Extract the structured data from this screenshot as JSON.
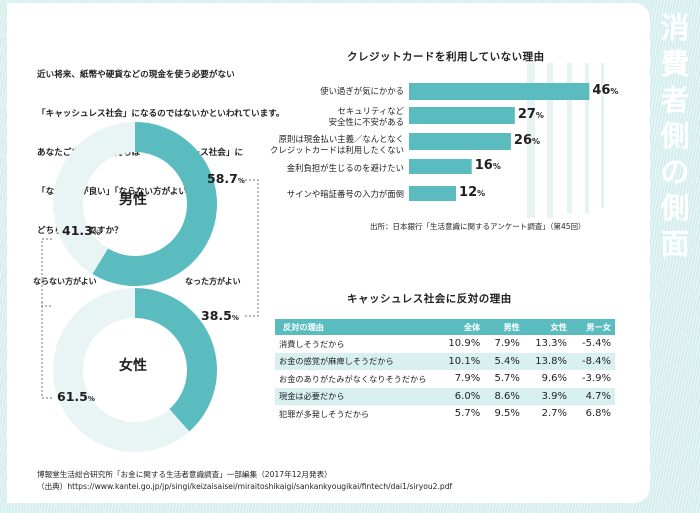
{
  "side_title": [
    "消",
    "費",
    "者",
    "側",
    "の",
    "側",
    "面"
  ],
  "question": [
    "近い将来、紙幣や硬貨などの現金を使う必要がない",
    "「キャッシュレス社会」になるのではないかといわれています。",
    "あなたご自身のお気持ちは「キャッシュレス社会」に",
    "「なった方が良い」「ならない方がよい」の",
    "どちらに近いですか？"
  ],
  "legend": {
    "positive": "なった方がよい",
    "negative": "ならない方がよい"
  },
  "pct_sign": "%",
  "colors": {
    "accent": "#5bbcc0",
    "light": "#e9f5f5",
    "bar": "#5bbcc0"
  },
  "chart_data": [
    {
      "type": "pie",
      "title": "男性",
      "labels": [
        "なった方がよい",
        "ならない方がよい"
      ],
      "values": [
        58.7,
        41.3
      ]
    },
    {
      "type": "pie",
      "title": "女性",
      "labels": [
        "なった方がよい",
        "ならない方がよい"
      ],
      "values": [
        38.5,
        61.5
      ]
    },
    {
      "type": "bar",
      "title": "クレジットカードを利用していない理由",
      "categories": [
        "使い過ぎが気にかかる",
        "セキュリティなど\n安全性に不安がある",
        "原則は現金払い主義／なんとなく\nクレジットカードは利用したくない",
        "金利負担が生じるのを避けたい",
        "サインや暗証番号の入力が面倒"
      ],
      "values": [
        46,
        27,
        26,
        16,
        12
      ],
      "unit": "%",
      "source": "出所：日本銀行「生活意識に関するアンケート調査」（第45回）"
    },
    {
      "type": "table",
      "title": "キャッシュレス社会に反対の理由",
      "columns": [
        "反対の理由",
        "全体",
        "男性",
        "女性",
        "男ー女"
      ],
      "rows": [
        [
          "消費しそうだから",
          "10.9%",
          "7.9%",
          "13.3%",
          "-5.4%"
        ],
        [
          "お金の感覚が麻痺しそうだから",
          "10.1%",
          "5.4%",
          "13.8%",
          "-8.4%"
        ],
        [
          "お金のありがたみがなくなりそうだから",
          "7.9%",
          "5.7%",
          "9.6%",
          "-3.9%"
        ],
        [
          "現金は必要だから",
          "6.0%",
          "8.6%",
          "3.9%",
          "4.7%"
        ],
        [
          "犯罪が多発しそうだから",
          "5.7%",
          "9.5%",
          "2.7%",
          "6.8%"
        ]
      ]
    }
  ],
  "footer": [
    "博報堂生活総合研究所「お金に関する生活者意識調査」一部編集（2017年12月発表）",
    "（出典）https://www.kantei.go.jp/jp/singi/keizaisaisei/miraitoshikaigi/sankankyougikai/fintech/dai1/siryou2.pdf"
  ]
}
